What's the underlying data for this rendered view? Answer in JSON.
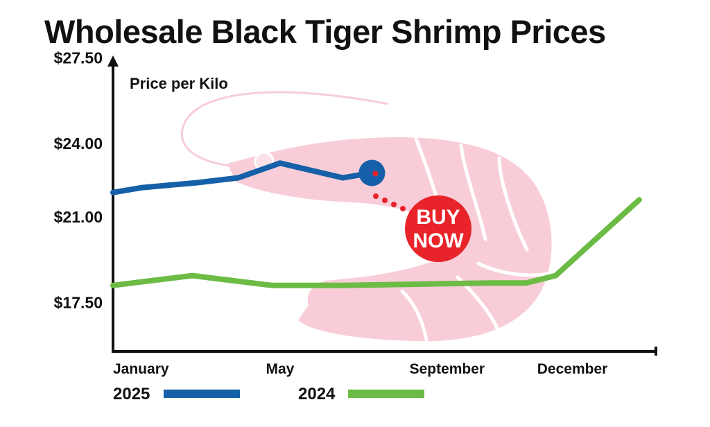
{
  "colors": {
    "series_2025": "#1560a8",
    "series_2024": "#6cbb45",
    "shrimp": "#f8cdd8",
    "buy_badge": "#e8232a",
    "axis": "#111111"
  },
  "badge": {
    "line1": "BUY",
    "line2": "NOW"
  },
  "chart_data": {
    "type": "line",
    "title": "Wholesale Black Tiger Shrimp Prices",
    "xlabel": "",
    "ylabel": "Price per Kilo",
    "y_ticks": [
      "$27.50",
      "$24.00",
      "$21.00",
      "$17.50"
    ],
    "y_tick_values": [
      27.5,
      24.0,
      21.0,
      17.5
    ],
    "x_ticks": [
      "January",
      "May",
      "September",
      "December"
    ],
    "x_tick_values": [
      1,
      5,
      9,
      12
    ],
    "xlim": [
      1,
      14
    ],
    "ylim": [
      15.5,
      28.0
    ],
    "grid": false,
    "legend": "bottom-left",
    "series": [
      {
        "name": "2025",
        "color": "#1560a8",
        "x": [
          1,
          1.7,
          3.0,
          4.0,
          5.0,
          6.5,
          7.2
        ],
        "y": [
          22.0,
          22.2,
          22.4,
          22.6,
          23.2,
          22.6,
          22.8
        ]
      },
      {
        "name": "2024",
        "color": "#6cbb45",
        "x": [
          1,
          2.9,
          4.8,
          6.5,
          8.3,
          10.0,
          10.9,
          11.6,
          12.5,
          13.6
        ],
        "y": [
          18.2,
          18.6,
          18.2,
          18.2,
          18.25,
          18.3,
          18.3,
          18.6,
          20.0,
          21.7
        ]
      }
    ]
  }
}
